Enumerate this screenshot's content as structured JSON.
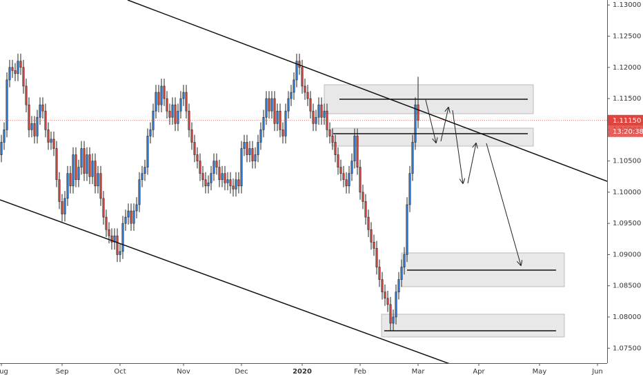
{
  "chart_data": {
    "type": "candlestick",
    "categories": [
      null,
      null,
      null,
      null,
      null,
      null,
      null,
      null,
      null,
      null,
      null,
      null,
      null,
      null,
      null,
      null,
      null,
      null,
      null,
      null,
      null,
      null,
      null,
      null,
      null,
      null,
      null,
      null,
      null,
      null,
      null,
      null,
      null,
      null,
      null,
      null,
      null,
      null,
      null,
      null,
      null,
      null,
      null,
      null,
      null,
      null,
      null,
      null,
      null,
      null,
      null,
      null,
      null,
      null,
      null,
      null,
      null,
      null,
      null,
      null,
      null,
      null,
      null,
      null,
      null,
      null,
      null,
      null,
      null,
      null,
      null,
      null,
      null,
      null,
      null,
      null,
      null,
      null,
      null,
      null,
      null,
      null,
      null,
      null,
      null,
      null,
      null,
      null,
      null,
      null,
      null,
      null,
      null,
      null,
      null,
      null,
      null,
      null,
      null,
      null,
      null,
      null,
      null,
      null,
      null,
      null,
      null,
      null,
      null,
      null,
      null,
      null,
      null,
      null,
      null,
      null,
      null,
      null,
      null,
      null,
      null,
      null,
      null,
      null,
      null,
      null,
      null,
      null,
      null,
      null,
      null,
      null,
      null,
      null,
      null,
      null,
      null,
      null,
      null,
      null,
      null,
      null,
      null,
      null,
      null,
      null,
      null,
      null,
      null,
      null,
      null,
      null
    ],
    "open": [
      1.106,
      1.108,
      1.11,
      1.118,
      1.12,
      1.1195,
      1.119,
      1.121,
      1.12,
      1.117,
      1.114,
      1.11,
      1.111,
      1.109,
      1.112,
      1.114,
      1.113,
      1.11,
      1.108,
      1.1085,
      1.107,
      1.102,
      1.0985,
      1.0965,
      1.099,
      1.103,
      1.101,
      1.106,
      1.102,
      1.104,
      1.107,
      1.103,
      1.106,
      1.1025,
      1.105,
      1.101,
      1.103,
      1.099,
      1.096,
      1.094,
      1.093,
      1.092,
      1.093,
      1.09,
      1.0905,
      1.095,
      1.096,
      1.097,
      1.095,
      1.097,
      1.098,
      1.102,
      1.103,
      1.104,
      1.109,
      1.11,
      1.113,
      1.116,
      1.114,
      1.117,
      1.115,
      1.113,
      1.112,
      1.114,
      1.111,
      1.113,
      1.115,
      1.116,
      1.113,
      1.11,
      1.108,
      1.106,
      1.105,
      1.103,
      1.102,
      1.101,
      1.1015,
      1.103,
      1.105,
      1.104,
      1.102,
      1.103,
      1.1015,
      1.102,
      1.101,
      1.1005,
      1.102,
      1.101,
      1.107,
      1.108,
      1.106,
      1.107,
      1.105,
      1.106,
      1.108,
      1.11,
      1.112,
      1.115,
      1.113,
      1.115,
      1.111,
      1.113,
      1.11,
      1.109,
      1.113,
      1.115,
      1.116,
      1.118,
      1.121,
      1.12,
      1.117,
      1.116,
      1.115,
      1.113,
      1.111,
      1.112,
      1.114,
      1.112,
      1.113,
      1.11,
      1.109,
      1.108,
      1.106,
      1.104,
      1.103,
      1.102,
      1.101,
      1.103,
      1.105,
      1.109,
      1.104,
      1.1,
      1.0985,
      1.096,
      1.094,
      1.092,
      1.091,
      1.088,
      1.086,
      1.084,
      1.083,
      1.082,
      1.079,
      1.08,
      1.084,
      1.086,
      1.088,
      1.09,
      1.098,
      1.103,
      1.108,
      1.114
    ],
    "high": [
      1.1092,
      1.1112,
      1.1192,
      1.1212,
      1.1212,
      1.1207,
      1.1222,
      1.1222,
      1.1212,
      1.1182,
      1.1152,
      1.1122,
      1.1122,
      1.1132,
      1.1152,
      1.1152,
      1.1142,
      1.1112,
      1.1097,
      1.1097,
      1.1082,
      1.1032,
      1.0997,
      1.1002,
      1.1042,
      1.1042,
      1.1072,
      1.1072,
      1.1052,
      1.1082,
      1.1082,
      1.1072,
      1.1072,
      1.1062,
      1.1062,
      1.1042,
      1.1042,
      1.1002,
      1.0972,
      1.0952,
      1.0942,
      1.0942,
      1.0942,
      1.0917,
      1.0962,
      1.0972,
      1.0982,
      1.0982,
      1.0982,
      1.0992,
      1.1032,
      1.1042,
      1.1052,
      1.1102,
      1.1112,
      1.1142,
      1.1172,
      1.1172,
      1.1182,
      1.1182,
      1.1162,
      1.1142,
      1.1152,
      1.1152,
      1.1142,
      1.1162,
      1.1172,
      1.1172,
      1.1142,
      1.1112,
      1.1092,
      1.1072,
      1.1062,
      1.1042,
      1.1032,
      1.1027,
      1.1042,
      1.1062,
      1.1062,
      1.1052,
      1.1042,
      1.1042,
      1.1032,
      1.1032,
      1.1022,
      1.1032,
      1.1032,
      1.1082,
      1.1092,
      1.1092,
      1.1082,
      1.1082,
      1.1072,
      1.1092,
      1.1112,
      1.1132,
      1.1162,
      1.1162,
      1.1162,
      1.1162,
      1.1142,
      1.1142,
      1.1112,
      1.1142,
      1.1162,
      1.1172,
      1.1192,
      1.1222,
      1.1222,
      1.1212,
      1.1182,
      1.1172,
      1.1162,
      1.1142,
      1.1132,
      1.1152,
      1.1152,
      1.1142,
      1.1142,
      1.1112,
      1.1102,
      1.1092,
      1.1072,
      1.1052,
      1.1042,
      1.1032,
      1.1042,
      1.1062,
      1.1102,
      1.1102,
      1.1052,
      1.1012,
      1.0997,
      1.0972,
      1.0952,
      1.0932,
      1.0922,
      1.0892,
      1.0872,
      1.0852,
      1.0842,
      1.0832,
      1.0812,
      1.0852,
      1.0872,
      1.0892,
      1.0912,
      1.0992,
      1.1042,
      1.1092,
      1.1152,
      1.1185
    ],
    "low": [
      1.1048,
      1.1068,
      1.1088,
      1.1168,
      1.1183,
      1.1178,
      1.1178,
      1.1188,
      1.1158,
      1.1128,
      1.1088,
      1.1088,
      1.1078,
      1.1078,
      1.1108,
      1.1118,
      1.1088,
      1.1068,
      1.1068,
      1.1058,
      1.1008,
      1.0973,
      1.0953,
      1.0953,
      1.0978,
      1.0998,
      1.0998,
      1.1008,
      1.1008,
      1.1028,
      1.1018,
      1.1018,
      1.1013,
      1.1013,
      1.0998,
      1.0998,
      1.0978,
      1.0948,
      1.0928,
      1.0918,
      1.0908,
      1.0908,
      1.0888,
      1.0888,
      1.0893,
      1.0938,
      1.0948,
      1.0938,
      1.0938,
      1.0958,
      1.0968,
      1.1008,
      1.1018,
      1.1028,
      1.1078,
      1.1088,
      1.1118,
      1.1128,
      1.1128,
      1.1138,
      1.1118,
      1.1108,
      1.1108,
      1.1098,
      1.1098,
      1.1118,
      1.1138,
      1.1118,
      1.1088,
      1.1068,
      1.1048,
      1.1038,
      1.1018,
      1.1008,
      1.0998,
      1.0998,
      1.1003,
      1.1018,
      1.1028,
      1.1008,
      1.1008,
      1.1003,
      1.1003,
      1.0998,
      1.0993,
      1.0993,
      1.0998,
      1.0998,
      1.1058,
      1.1048,
      1.1048,
      1.1038,
      1.1038,
      1.1048,
      1.1068,
      1.1088,
      1.1108,
      1.1118,
      1.1118,
      1.1098,
      1.1098,
      1.1088,
      1.1078,
      1.1078,
      1.1118,
      1.1138,
      1.1148,
      1.1168,
      1.1188,
      1.1158,
      1.1148,
      1.1138,
      1.1118,
      1.1098,
      1.1098,
      1.1108,
      1.1108,
      1.1108,
      1.1088,
      1.1078,
      1.1068,
      1.1048,
      1.1028,
      1.1018,
      1.1008,
      1.0998,
      1.0998,
      1.1018,
      1.1038,
      1.1028,
      1.0988,
      1.0973,
      1.0948,
      1.0928,
      1.0908,
      1.0898,
      1.0868,
      1.0848,
      1.0828,
      1.0818,
      1.0808,
      1.0778,
      1.0778,
      1.0788,
      1.0828,
      1.0848,
      1.0868,
      1.0888,
      1.0968,
      1.1018,
      1.1068,
      1.1103
    ],
    "close": [
      1.108,
      1.11,
      1.118,
      1.12,
      1.1195,
      1.119,
      1.121,
      1.12,
      1.117,
      1.114,
      1.11,
      1.111,
      1.109,
      1.112,
      1.114,
      1.113,
      1.11,
      1.108,
      1.1085,
      1.107,
      1.102,
      1.0985,
      1.0965,
      1.099,
      1.103,
      1.101,
      1.106,
      1.102,
      1.104,
      1.107,
      1.103,
      1.106,
      1.1025,
      1.105,
      1.101,
      1.103,
      1.099,
      1.096,
      1.094,
      1.093,
      1.092,
      1.093,
      1.09,
      1.0905,
      1.095,
      1.096,
      1.097,
      1.095,
      1.097,
      1.098,
      1.102,
      1.103,
      1.104,
      1.109,
      1.11,
      1.113,
      1.116,
      1.114,
      1.117,
      1.115,
      1.113,
      1.112,
      1.114,
      1.111,
      1.113,
      1.115,
      1.116,
      1.113,
      1.11,
      1.108,
      1.106,
      1.105,
      1.103,
      1.102,
      1.101,
      1.1015,
      1.103,
      1.105,
      1.104,
      1.102,
      1.103,
      1.1015,
      1.102,
      1.101,
      1.1005,
      1.102,
      1.101,
      1.107,
      1.108,
      1.106,
      1.107,
      1.105,
      1.106,
      1.108,
      1.11,
      1.112,
      1.115,
      1.113,
      1.115,
      1.111,
      1.113,
      1.11,
      1.109,
      1.113,
      1.115,
      1.116,
      1.118,
      1.121,
      1.12,
      1.117,
      1.116,
      1.115,
      1.113,
      1.111,
      1.112,
      1.114,
      1.112,
      1.113,
      1.11,
      1.109,
      1.108,
      1.106,
      1.104,
      1.103,
      1.102,
      1.101,
      1.103,
      1.105,
      1.109,
      1.104,
      1.1,
      1.0985,
      1.096,
      1.094,
      1.092,
      1.091,
      1.088,
      1.086,
      1.084,
      1.083,
      1.082,
      1.079,
      1.08,
      1.084,
      1.086,
      1.088,
      1.09,
      1.098,
      1.103,
      1.108,
      1.114,
      1.1115
    ],
    "up_color": "#2f7de1",
    "down_color": "#e0443e",
    "xlim": [
      -0.5,
      219.5
    ],
    "xticks": [
      {
        "value": 0,
        "label": "Aug"
      },
      {
        "value": 22,
        "label": "Sep"
      },
      {
        "value": 43,
        "label": "Oct"
      },
      {
        "value": 66,
        "label": "Nov"
      },
      {
        "value": 87,
        "label": "Dec"
      },
      {
        "value": 109,
        "label": "2020"
      },
      {
        "value": 130,
        "label": "Feb"
      },
      {
        "value": 151,
        "label": "Mar"
      },
      {
        "value": 173,
        "label": "Apr"
      },
      {
        "value": 195,
        "label": "May"
      },
      {
        "value": 216,
        "label": "Jun"
      }
    ],
    "ylim": [
      1.0726,
      1.1308
    ],
    "yticks": [
      {
        "value": 1.13,
        "label": "1.13000"
      },
      {
        "value": 1.125,
        "label": "1.12500"
      },
      {
        "value": 1.12,
        "label": "1.12000"
      },
      {
        "value": 1.115,
        "label": "1.11500"
      },
      {
        "value": 1.11,
        "label": "1.11000"
      },
      {
        "value": 1.105,
        "label": "1.10500"
      },
      {
        "value": 1.1,
        "label": "1.10000"
      },
      {
        "value": 1.095,
        "label": "1.09500"
      },
      {
        "value": 1.09,
        "label": "1.09000"
      },
      {
        "value": 1.085,
        "label": "1.08500"
      },
      {
        "value": 1.08,
        "label": "1.08000"
      },
      {
        "value": 1.075,
        "label": "1.07500"
      }
    ],
    "last_price": {
      "value": 1.1115,
      "label": "1.11150"
    },
    "countdown": "13:20:38"
  }
}
